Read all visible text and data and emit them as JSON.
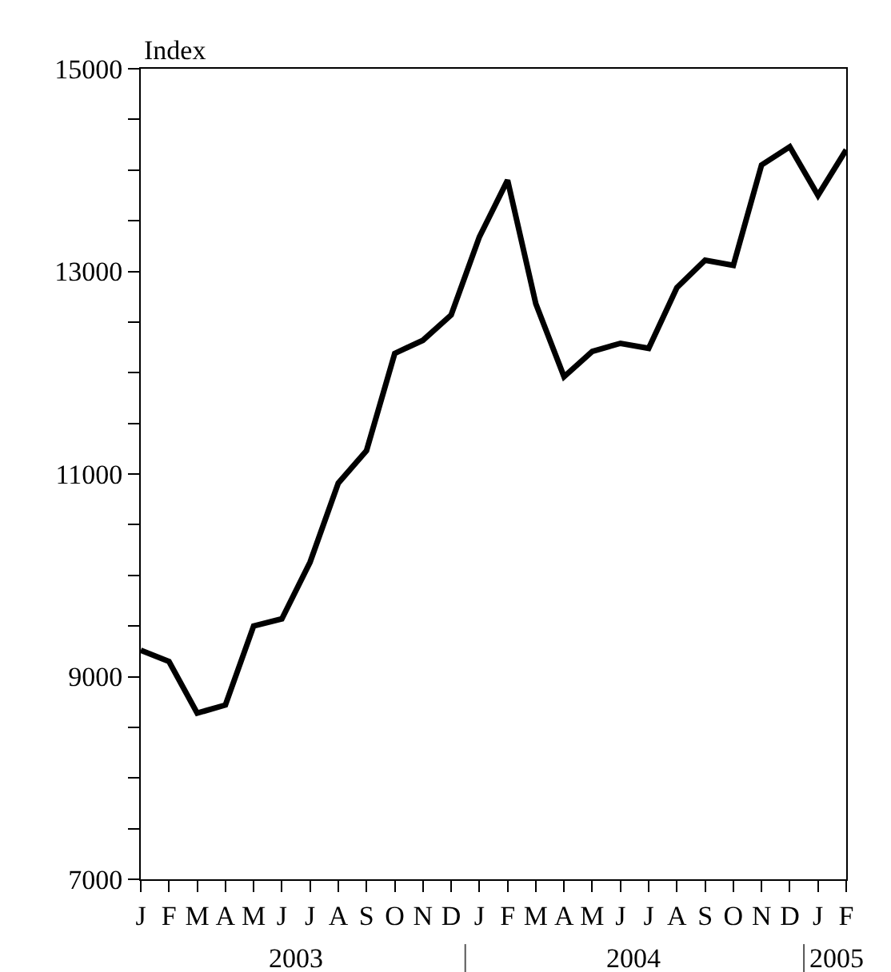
{
  "chart_data": {
    "type": "line",
    "ylabel": "Index",
    "categories": [
      "J",
      "F",
      "M",
      "A",
      "M",
      "J",
      "J",
      "A",
      "S",
      "O",
      "N",
      "D",
      "J",
      "F",
      "M",
      "A",
      "M",
      "J",
      "J",
      "A",
      "S",
      "O",
      "N",
      "D",
      "J",
      "F"
    ],
    "series": [
      {
        "color": "#000000",
        "values": [
          9260,
          9150,
          8640,
          8720,
          9500,
          9570,
          10130,
          10910,
          11230,
          12190,
          12320,
          12570,
          13340,
          13900,
          12680,
          11960,
          12210,
          12290,
          12240,
          12840,
          13110,
          13060,
          14050,
          14230,
          13750,
          14200
        ]
      }
    ],
    "ylim": [
      7000,
      15000
    ],
    "yticks": [
      7000,
      {
        "value": 7500,
        "label": null
      },
      {
        "value": 8000,
        "label": null
      },
      {
        "value": 8500,
        "label": null
      },
      9000,
      {
        "value": 9500,
        "label": null
      },
      {
        "value": 10000,
        "label": null
      },
      {
        "value": 10500,
        "label": null
      },
      11000,
      {
        "value": 11500,
        "label": null
      },
      {
        "value": 12000,
        "label": null
      },
      {
        "value": 12500,
        "label": null
      },
      13000,
      {
        "value": 13500,
        "label": null
      },
      {
        "value": 14000,
        "label": null
      },
      {
        "value": 14500,
        "label": null
      },
      15000
    ],
    "annotations": [
      "2003",
      "2004",
      "2005"
    ],
    "marker": "none",
    "line_style": "solid"
  }
}
